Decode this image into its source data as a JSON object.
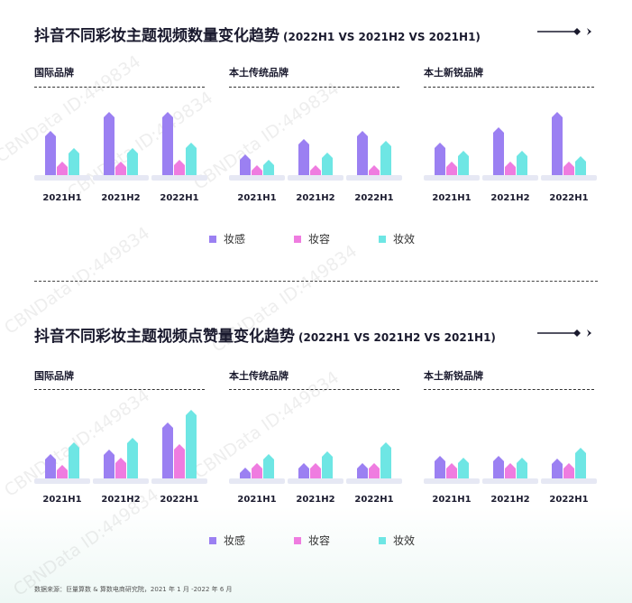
{
  "sections": [
    {
      "title": "抖音不同彩妆主题视频数量变化趋势",
      "subtitle": "(2022H1 VS 2021H2 VS 2021H1)"
    },
    {
      "title": "抖音不同彩妆主题视频点赞量变化趋势",
      "subtitle": "(2022H1 VS 2021H2 VS 2021H1)"
    }
  ],
  "colors": {
    "妆感": "#9b80f2",
    "妆容": "#ef7ce0",
    "妆效": "#6ee6e4",
    "base": "#e6e8f4"
  },
  "legend": [
    {
      "name": "妆感",
      "color": "#9b80f2"
    },
    {
      "name": "妆容",
      "color": "#ef7ce0"
    },
    {
      "name": "妆效",
      "color": "#6ee6e4"
    }
  ],
  "chart_data": [
    {
      "type": "bar",
      "title": "国际品牌",
      "categories": [
        "2021H1",
        "2021H2",
        "2022H1"
      ],
      "series": [
        {
          "name": "妆感",
          "values": [
            40,
            60,
            60
          ]
        },
        {
          "name": "妆容",
          "values": [
            8,
            8,
            10
          ]
        },
        {
          "name": "妆效",
          "values": [
            22,
            22,
            28
          ]
        }
      ]
    },
    {
      "type": "bar",
      "title": "本土传统品牌",
      "categories": [
        "2021H1",
        "2021H2",
        "2022H1"
      ],
      "series": [
        {
          "name": "妆感",
          "values": [
            16,
            32,
            40
          ]
        },
        {
          "name": "妆容",
          "values": [
            5,
            5,
            5
          ]
        },
        {
          "name": "妆效",
          "values": [
            10,
            18,
            30
          ]
        }
      ]
    },
    {
      "type": "bar",
      "title": "本土新锐品牌",
      "categories": [
        "2021H1",
        "2021H2",
        "2022H1"
      ],
      "series": [
        {
          "name": "妆感",
          "values": [
            28,
            44,
            60
          ]
        },
        {
          "name": "妆容",
          "values": [
            8,
            8,
            8
          ]
        },
        {
          "name": "妆效",
          "values": [
            20,
            20,
            14
          ]
        }
      ]
    },
    {
      "type": "bar",
      "title": "国际品牌",
      "categories": [
        "2021H1",
        "2021H2",
        "2022H1"
      ],
      "series": [
        {
          "name": "妆感",
          "values": [
            20,
            24,
            52
          ]
        },
        {
          "name": "妆容",
          "values": [
            8,
            16,
            30
          ]
        },
        {
          "name": "妆效",
          "values": [
            32,
            36,
            65
          ]
        }
      ]
    },
    {
      "type": "bar",
      "title": "本土传统品牌",
      "categories": [
        "2021H1",
        "2021H2",
        "2022H1"
      ],
      "series": [
        {
          "name": "妆感",
          "values": [
            6,
            10,
            10
          ]
        },
        {
          "name": "妆容",
          "values": [
            10,
            10,
            10
          ]
        },
        {
          "name": "妆效",
          "values": [
            20,
            22,
            32
          ]
        }
      ]
    },
    {
      "type": "bar",
      "title": "本土新锐品牌",
      "categories": [
        "2021H1",
        "2021H2",
        "2022H1"
      ],
      "series": [
        {
          "name": "妆感",
          "values": [
            18,
            18,
            15
          ]
        },
        {
          "name": "妆容",
          "values": [
            10,
            10,
            10
          ]
        },
        {
          "name": "妆效",
          "values": [
            16,
            16,
            26
          ]
        }
      ]
    }
  ],
  "footnote": "数据来源：巨量算数 & 算数电商研究院，2021 年 1 月 -2022 年 6 月",
  "watermark": "CBNData ID:449834"
}
